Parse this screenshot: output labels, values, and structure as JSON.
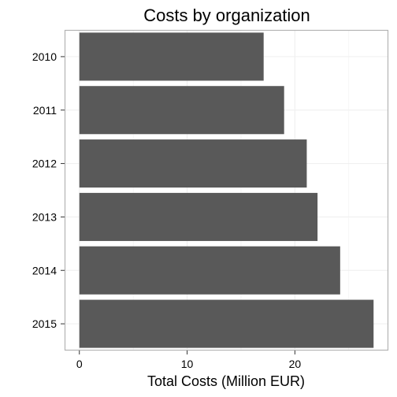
{
  "chart_data": {
    "type": "bar",
    "orientation": "horizontal",
    "title": "Costs by organization",
    "xlabel": "Total Costs (Million EUR)",
    "ylabel": "",
    "categories": [
      "2010",
      "2011",
      "2012",
      "2013",
      "2014",
      "2015"
    ],
    "values": [
      17.1,
      19.0,
      21.1,
      22.1,
      24.2,
      27.3
    ],
    "xlim": [
      -1.37,
      28.67
    ],
    "xticks": [
      0,
      10,
      20
    ],
    "grid": true,
    "bar_color": "#595959",
    "panel_border_color": "#b3b3b3",
    "grid_color": "#f0f0f0"
  }
}
